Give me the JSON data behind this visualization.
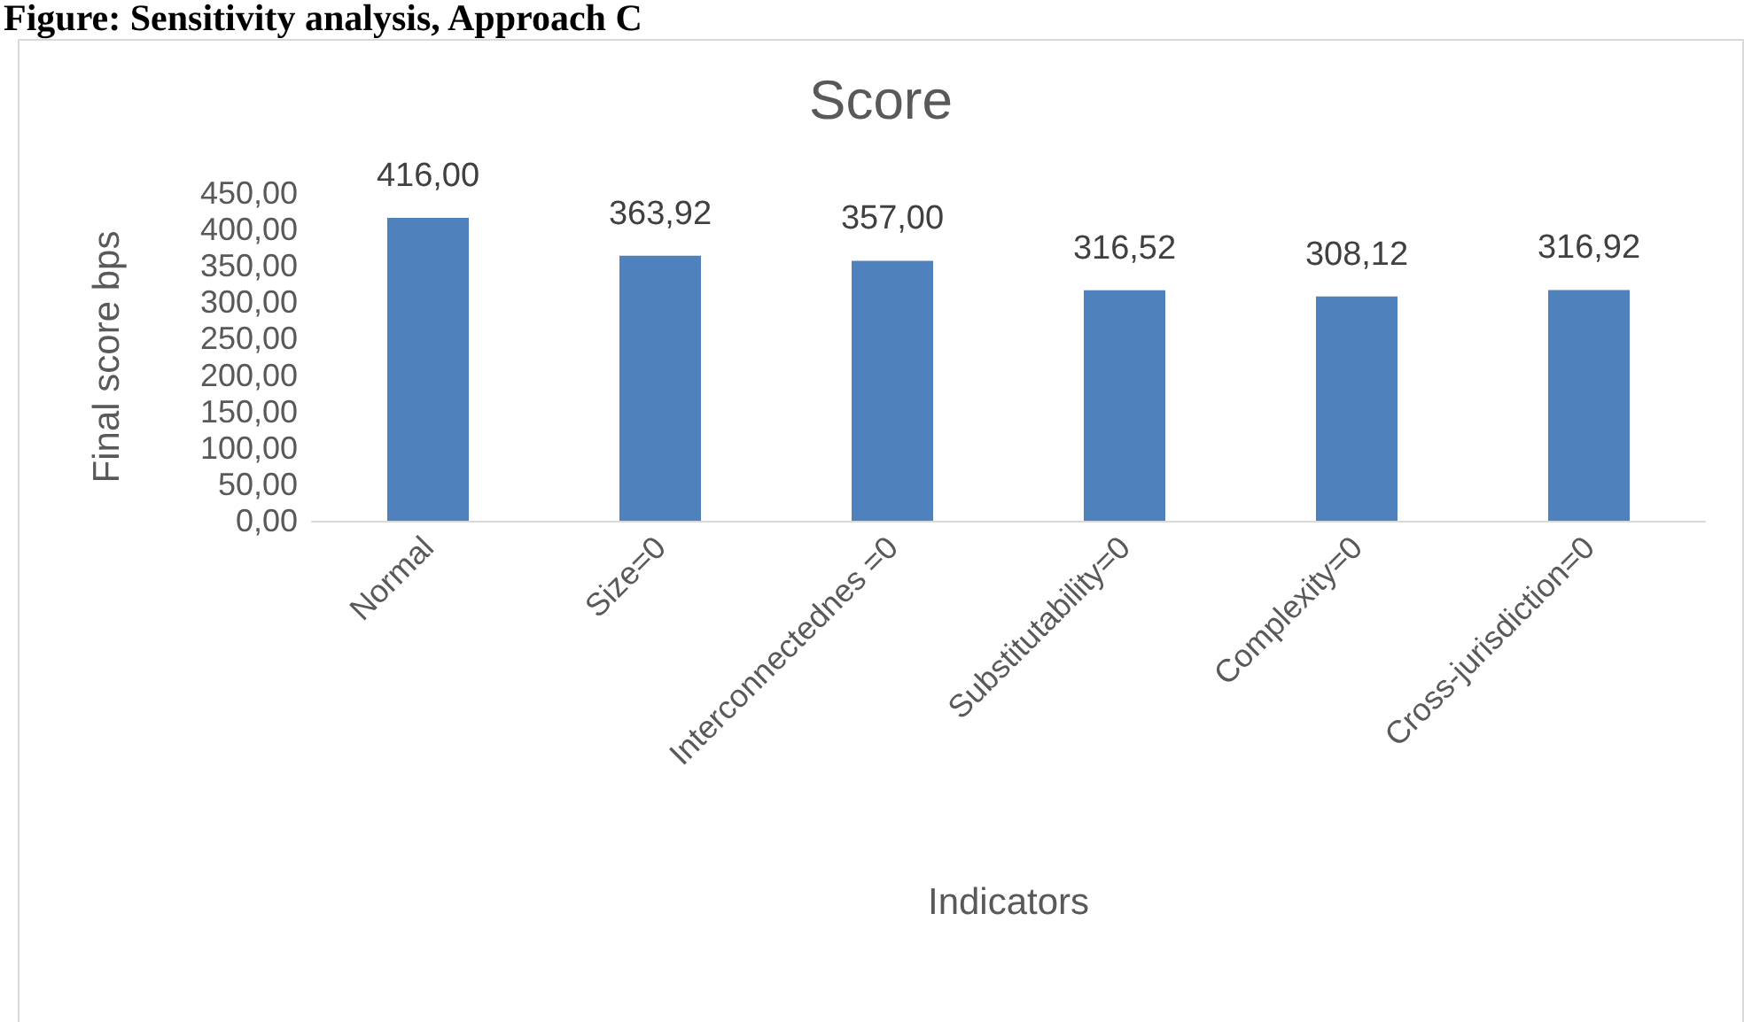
{
  "chart_data": {
    "type": "bar",
    "title": "Score",
    "xlabel": "Indicators",
    "ylabel": "Final score bps",
    "annotations": [
      "Figure: Sensitivity analysis, Approach C"
    ],
    "categories": [
      "Normal",
      "Size=0",
      "Interconnectednes =0",
      "Substitutability=0",
      "Complexity=0",
      "Cross-jurisdiction=0"
    ],
    "values": [
      416.0,
      363.92,
      357.0,
      316.52,
      308.12,
      316.92
    ],
    "value_labels": [
      "416,00",
      "363,92",
      "357,00",
      "316,52",
      "308,12",
      "316,92"
    ],
    "color": "#4f81bd",
    "ylim": [
      0,
      450
    ],
    "yticks": [
      {
        "value": 0,
        "label": "0,00"
      },
      {
        "value": 50,
        "label": "50,00"
      },
      {
        "value": 100,
        "label": "100,00"
      },
      {
        "value": 150,
        "label": "150,00"
      },
      {
        "value": 200,
        "label": "200,00"
      },
      {
        "value": 250,
        "label": "250,00"
      },
      {
        "value": 300,
        "label": "300,00"
      },
      {
        "value": 350,
        "label": "350,00"
      },
      {
        "value": 400,
        "label": "400,00"
      },
      {
        "value": 450,
        "label": "450,00"
      }
    ],
    "grid": false
  }
}
